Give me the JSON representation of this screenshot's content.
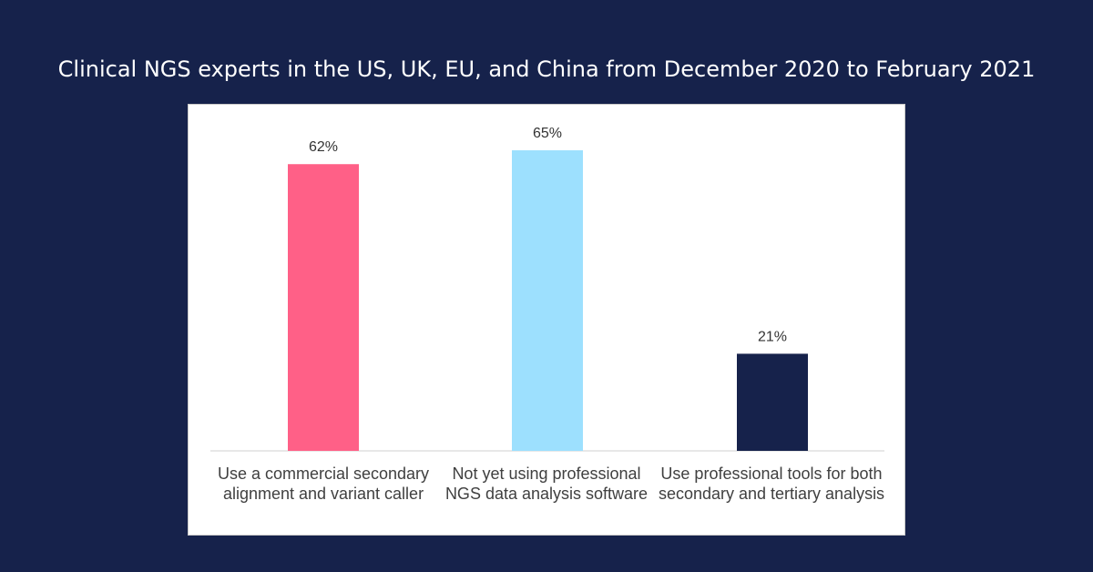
{
  "colors": {
    "background": "#16224b",
    "panel": "#ffffff"
  },
  "chart_data": {
    "type": "bar",
    "title": "Clinical NGS experts in the US, UK, EU, and China from December 2020 to February 2021",
    "categories": [
      "Use a commercial secondary alignment and variant caller",
      "Not yet using professional NGS data analysis software",
      "Use professional tools for both secondary and tertiary analysis"
    ],
    "values": [
      62,
      65,
      21
    ],
    "value_labels": [
      "62%",
      "65%",
      "21%"
    ],
    "bar_colors": [
      "#ff6087",
      "#9de0fe",
      "#16224b"
    ],
    "xlabel": "",
    "ylabel": "",
    "ylim": [
      0,
      65
    ],
    "grid": false,
    "legend": "none"
  }
}
